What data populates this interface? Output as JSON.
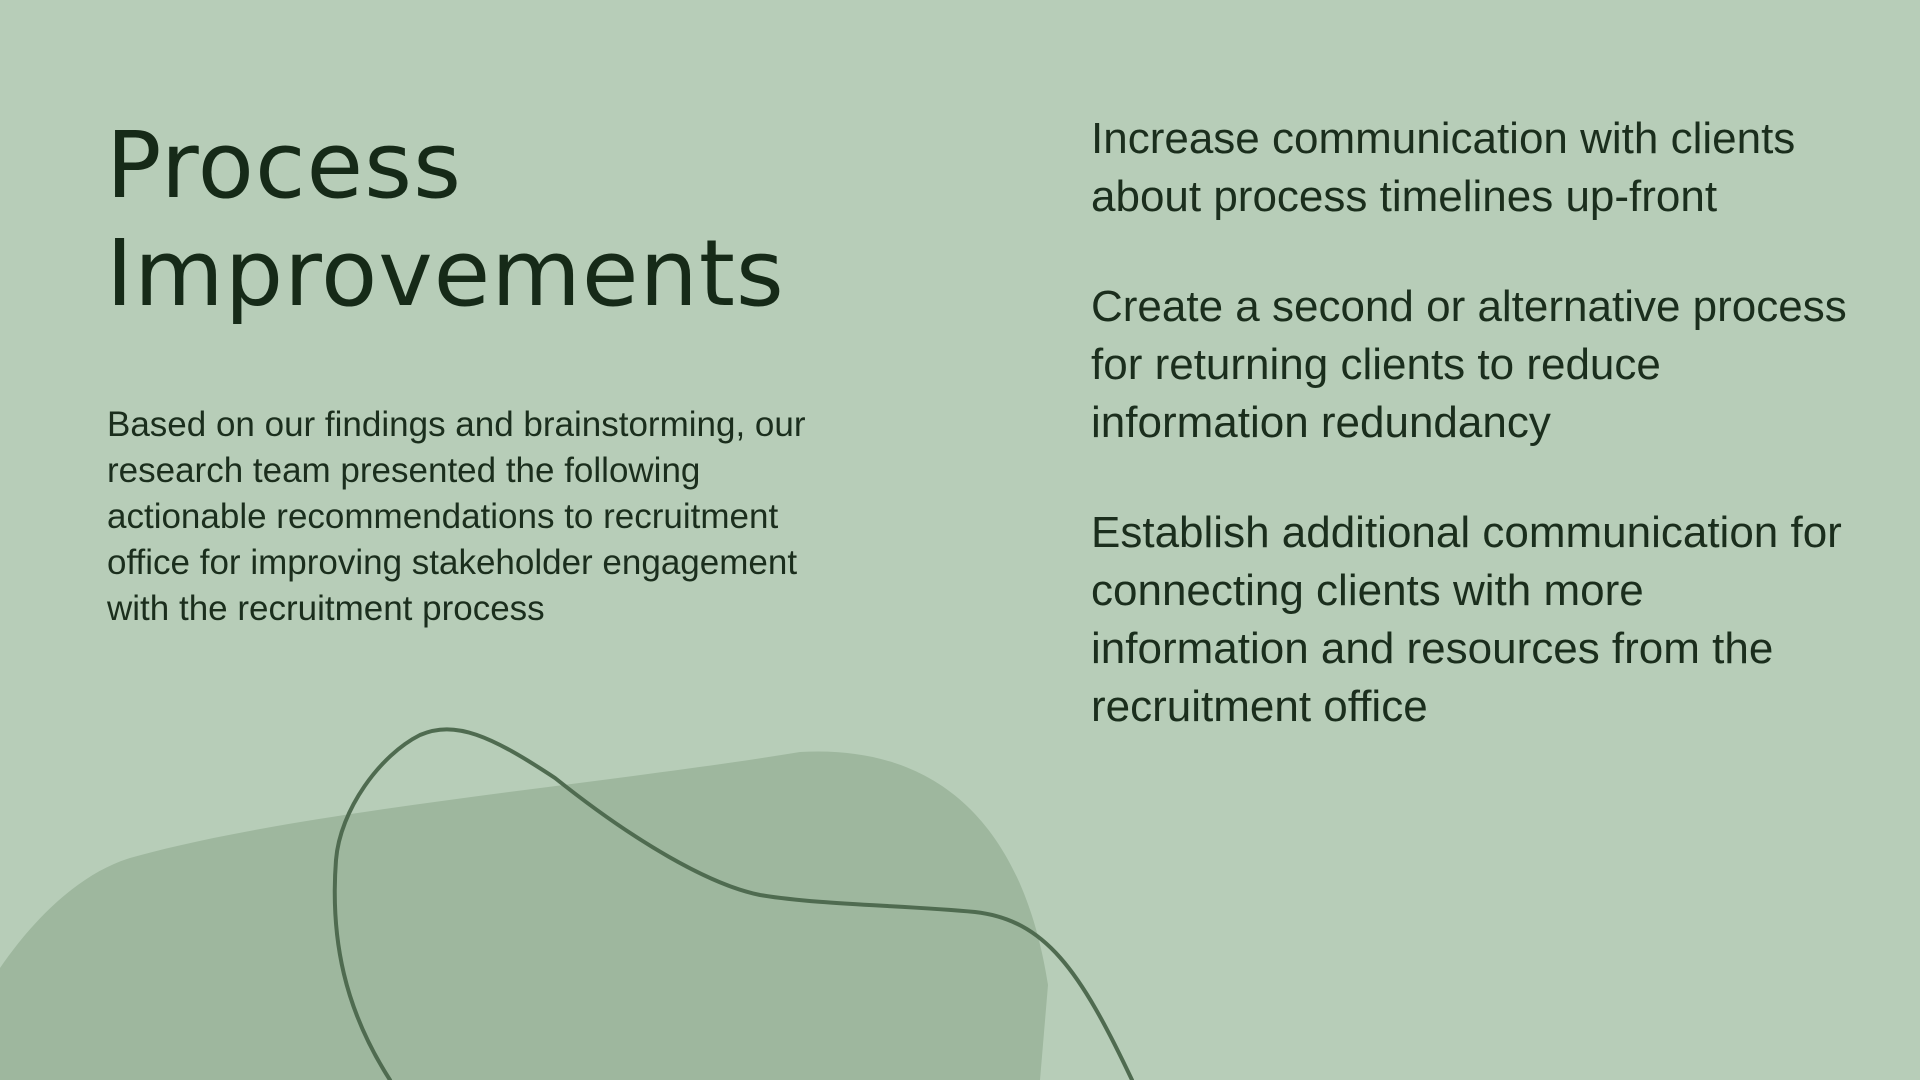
{
  "title_lines": [
    "Process",
    "Improvements"
  ],
  "intro": "Based on our findings and brainstorming, our research team presented the following actionable recommendations to recruitment office for improving stakeholder engagement with the recruitment process",
  "recommendations": [
    "Increase communication with clients about process timelines up-front",
    "Create a second or alternative process for returning clients to reduce information redundancy",
    "Establish additional communication for connecting clients with more information and resources from the recruitment office"
  ],
  "colors": {
    "background": "#b7cdb8",
    "blob": "#9eb79e",
    "line": "#4f6b50",
    "text": "#172a19"
  }
}
